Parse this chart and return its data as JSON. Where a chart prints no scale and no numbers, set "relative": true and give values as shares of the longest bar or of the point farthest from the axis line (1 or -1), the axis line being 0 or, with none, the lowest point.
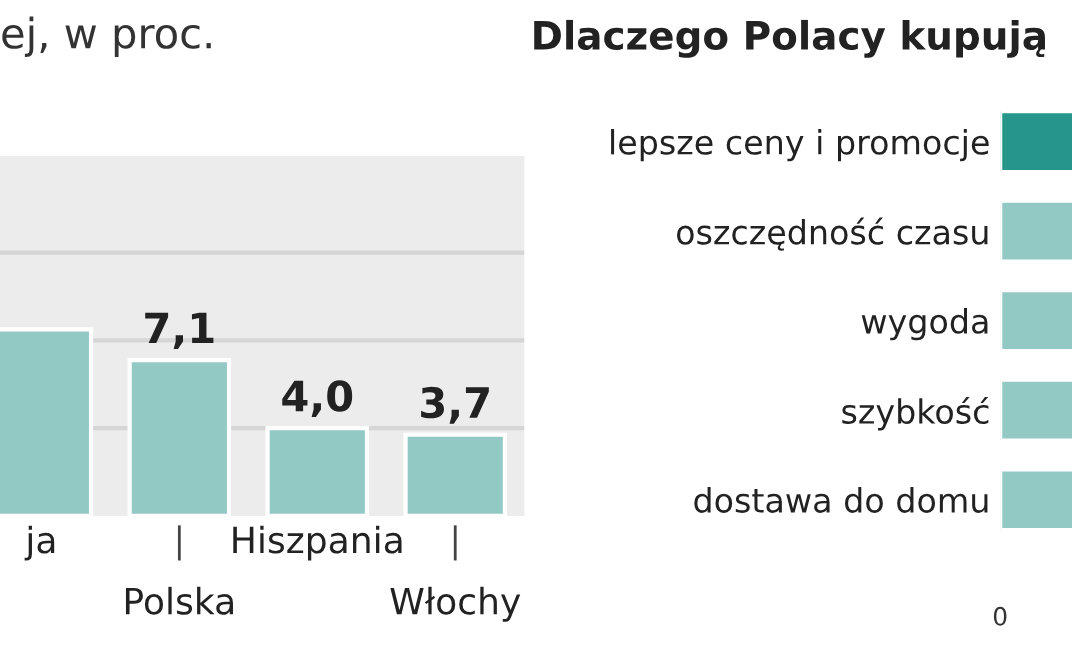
{
  "chart_data": [
    {
      "type": "bar",
      "title": "ej, w proc.",
      "categories": [
        "ja",
        "Polska",
        "Hiszpania",
        "Włochy"
      ],
      "values": [
        8.5,
        7.1,
        4.0,
        3.7
      ],
      "value_labels": [
        null,
        "7,1",
        "4,0",
        "3,7"
      ],
      "color": "#93c9c5",
      "ylim": [
        0,
        16.4
      ],
      "yticks": [
        {
          "value": 4,
          "label": null
        },
        {
          "value": 8,
          "label": null
        },
        {
          "value": 12,
          "label": null
        }
      ],
      "grid": "y",
      "tick_labels": "x"
    },
    {
      "type": "bar",
      "orientation": "horizontal",
      "title": "Dlaczego Polacy kupują",
      "relative": true,
      "categories": [
        "lepsze ceny i promocje",
        "oszczędność czasu",
        "wygoda",
        "szybkość",
        "dostawa do domu"
      ],
      "values": [
        1,
        1,
        1,
        1,
        1
      ],
      "colors": [
        "#26958a",
        "#93c9c5",
        "#93c9c5",
        "#93c9c5",
        "#93c9c5"
      ],
      "annotations": [
        "0"
      ],
      "tick_labels": "y"
    }
  ]
}
